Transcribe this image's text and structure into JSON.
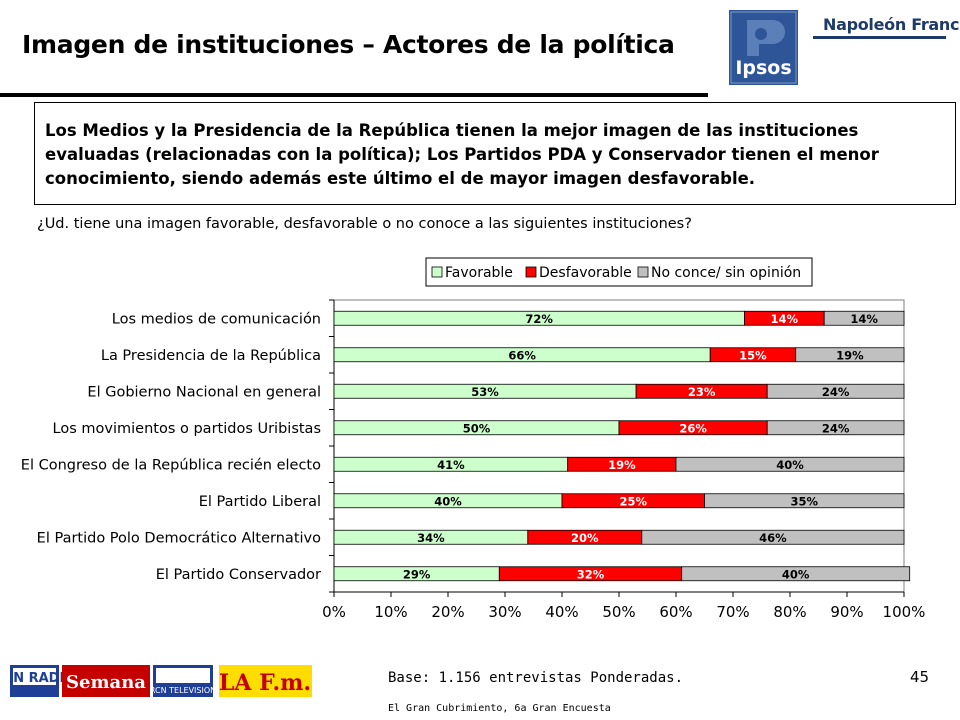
{
  "header": {
    "title": "Imagen de instituciones – Actores de la política",
    "logo_ipsos_text": "Ipsos",
    "logo_brand_text": "Napoleón Franco"
  },
  "summary": "Los Medios y la Presidencia de la República tienen la mejor imagen de las instituciones evaluadas (relacionadas con la política); Los Partidos PDA y Conservador tienen el menor conocimiento, siendo además este último el de mayor imagen desfavorable.",
  "question": "¿Ud. tiene una imagen favorable, desfavorable o no conoce a las siguientes instituciones?",
  "chart_data": {
    "type": "bar",
    "orientation": "horizontal",
    "stacked": true,
    "legend_position": "top-right",
    "categories": [
      "Los medios de comunicación",
      "La Presidencia de la República",
      "El Gobierno Nacional en general",
      "Los movimientos o partidos Uribistas",
      "El Congreso de la República recién electo",
      "El Partido Liberal",
      "El Partido Polo Democrático Alternativo",
      "El Partido Conservador"
    ],
    "series": [
      {
        "name": "Favorable",
        "color": "#ccffcc",
        "label_color": "#000000",
        "values": [
          72,
          66,
          53,
          50,
          41,
          40,
          34,
          29
        ],
        "labels": [
          "72%",
          "66%",
          "53%",
          "50%",
          "41%",
          "40%",
          "34%",
          "29%"
        ]
      },
      {
        "name": "Desfavorable",
        "color": "#ff0000",
        "label_color": "#ffffff",
        "values": [
          14,
          15,
          23,
          26,
          19,
          25,
          20,
          32
        ],
        "labels": [
          "14%",
          "15%",
          "23%",
          "26%",
          "19%",
          "25%",
          "20%",
          "32%"
        ]
      },
      {
        "name": "No conce/ sin opinión",
        "color": "#c0c0c0",
        "label_color": "#000000",
        "values": [
          14,
          19,
          24,
          24,
          40,
          35,
          46,
          40
        ],
        "labels": [
          "14%",
          "19%",
          "24%",
          "24%",
          "40%",
          "35%",
          "46%",
          "40%"
        ]
      }
    ],
    "xlim": [
      0,
      100
    ],
    "xticks": [
      0,
      10,
      20,
      30,
      40,
      50,
      60,
      70,
      80,
      90,
      100
    ],
    "xtick_labels": [
      "0%",
      "10%",
      "20%",
      "30%",
      "40%",
      "50%",
      "60%",
      "70%",
      "80%",
      "90%",
      "100%"
    ]
  },
  "footer": {
    "base": "Base: 1.156 entrevistas Ponderadas.",
    "source": "El Gran Cubrimiento, 6a Gran Encuesta",
    "page_number": "45",
    "media_logos": [
      "RCN RADIO",
      "Semana",
      "RCN TELEVISION",
      "LA F.m."
    ]
  }
}
